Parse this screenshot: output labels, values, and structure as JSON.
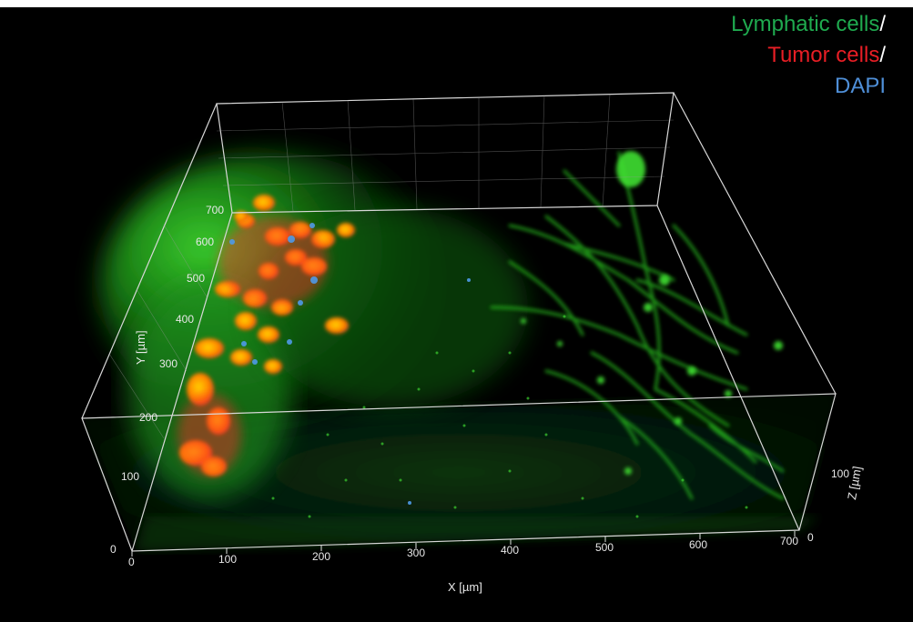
{
  "legend": {
    "lymphatic": "Lymphatic cells",
    "tumor": "Tumor cells",
    "dapi": "DAPI",
    "separator": "/"
  },
  "axes": {
    "x_title": "X [µm]",
    "y_title": "Y [µm]",
    "z_title": "Z [µm]",
    "x_ticks": [
      "0",
      "100",
      "200",
      "300",
      "400",
      "500",
      "600",
      "700"
    ],
    "y_ticks": [
      "0",
      "100",
      "200",
      "300",
      "400",
      "500",
      "600",
      "700"
    ],
    "z_ticks": [
      "0",
      "100"
    ]
  },
  "colors": {
    "lymphatic": "#1faa4f",
    "tumor": "#e81e25",
    "dapi": "#4f8fd8",
    "background": "#000000"
  }
}
